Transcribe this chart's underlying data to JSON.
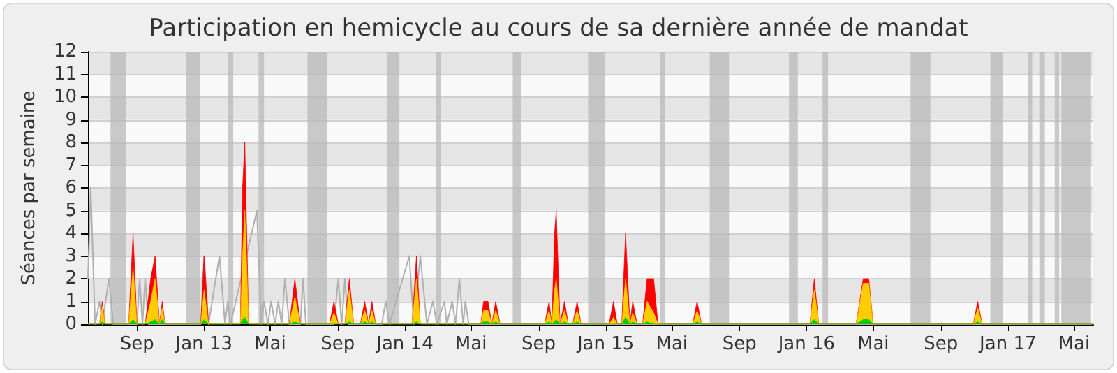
{
  "chart_data": {
    "type": "area",
    "title": "Participation en hemicycle au cours de sa dernière année de mandat",
    "ylabel": "Séances par semaine",
    "x": [
      "2012-06-04",
      "2012-06-25",
      "2012-06-30",
      "2012-07-05",
      "2012-08-17",
      "2012-08-25",
      "2012-09-01",
      "2012-09-16",
      "2012-09-26",
      "2012-10-04",
      "2012-10-12",
      "2012-10-17",
      "2012-10-22",
      "2012-12-26",
      "2013-01-01",
      "2013-01-09",
      "2013-03-08",
      "2013-03-12",
      "2013-03-16",
      "2013-03-23",
      "2013-06-05",
      "2013-06-15",
      "2013-06-25",
      "2013-08-17",
      "2013-08-25",
      "2013-09-02",
      "2013-09-14",
      "2013-09-22",
      "2013-09-30",
      "2013-10-12",
      "2013-10-20",
      "2013-10-27",
      "2013-11-02",
      "2013-11-09",
      "2014-01-14",
      "2014-01-22",
      "2014-01-29",
      "2014-05-19",
      "2014-05-24",
      "2014-06-01",
      "2014-06-08",
      "2014-06-15",
      "2014-06-23",
      "2014-09-12",
      "2014-09-20",
      "2014-09-25",
      "2014-09-30",
      "2014-10-03",
      "2014-10-10",
      "2014-10-18",
      "2014-10-25",
      "2014-11-02",
      "2014-11-10",
      "2014-11-17",
      "2015-01-07",
      "2015-01-15",
      "2015-01-22",
      "2015-01-30",
      "2015-02-06",
      "2015-02-14",
      "2015-02-19",
      "2015-02-27",
      "2015-03-09",
      "2015-03-17",
      "2015-03-29",
      "2015-04-06",
      "2015-06-08",
      "2015-06-16",
      "2015-06-24",
      "2016-01-07",
      "2016-01-15",
      "2016-01-23",
      "2016-03-31",
      "2016-04-13",
      "2016-04-23",
      "2016-05-01",
      "2016-10-30",
      "2016-11-07",
      "2016-11-15",
      "2017-06-03"
    ],
    "series": [
      {
        "color": "#ff0000",
        "values": [
          0,
          0,
          1,
          0,
          0,
          4,
          0,
          0,
          2,
          3,
          0,
          1,
          0,
          0,
          3,
          0,
          0,
          6,
          8,
          0,
          0,
          2,
          0,
          0,
          1,
          0,
          0,
          2,
          0,
          0,
          1,
          0,
          1,
          0,
          0,
          3,
          0,
          0,
          1,
          1,
          0,
          1,
          0,
          0,
          1,
          0,
          4,
          5,
          0,
          1,
          0,
          0,
          1,
          0,
          0,
          1,
          0,
          0,
          4,
          0,
          1,
          0,
          0,
          2,
          2,
          0,
          0,
          1,
          0,
          0,
          2,
          0,
          0,
          2,
          2,
          0,
          0,
          1,
          0,
          0
        ]
      },
      {
        "color": "#ffcc00",
        "values": [
          0,
          0,
          0.8,
          0,
          0,
          2.5,
          0,
          0,
          1,
          2,
          0,
          0.7,
          0,
          0,
          1.5,
          0,
          0,
          3,
          5,
          0,
          0,
          1.2,
          0,
          0,
          0.5,
          0,
          0,
          1.5,
          0,
          0,
          0.6,
          0,
          0.6,
          0,
          0,
          2,
          0,
          0,
          0.6,
          0.6,
          0,
          0.6,
          0,
          0,
          0.6,
          0,
          1.5,
          2,
          0,
          0.6,
          0,
          0,
          0.6,
          0,
          0,
          0.3,
          0,
          0,
          2,
          0,
          0.5,
          0,
          0,
          1,
          0.5,
          0,
          0,
          0.6,
          0,
          0,
          1.5,
          0,
          0,
          1.8,
          1.8,
          0,
          0,
          0.7,
          0,
          0
        ]
      },
      {
        "color": "#00cc00",
        "values": [
          0,
          0,
          0.1,
          0,
          0,
          0.2,
          0,
          0,
          0.1,
          0.2,
          0,
          0.2,
          0,
          0,
          0.2,
          0,
          0,
          0.2,
          0.3,
          0,
          0,
          0.1,
          0,
          0,
          0,
          0,
          0,
          0.1,
          0,
          0,
          0.1,
          0,
          0.1,
          0,
          0,
          0.1,
          0,
          0,
          0.1,
          0.1,
          0,
          0.1,
          0,
          0,
          0.1,
          0,
          0.1,
          0.2,
          0,
          0.1,
          0,
          0,
          0.1,
          0,
          0,
          0,
          0,
          0,
          0.3,
          0,
          0.1,
          0,
          0,
          0.1,
          0,
          0,
          0,
          0.1,
          0,
          0,
          0.2,
          0,
          0,
          0.2,
          0.2,
          0,
          0,
          0.1,
          0,
          0
        ]
      },
      {
        "type": "line",
        "color": "#b0b0b0",
        "x": [
          "2012-06-04",
          "2012-06-09",
          "2012-06-17",
          "2012-06-25",
          "2012-06-30",
          "2012-07-12",
          "2012-07-20",
          "2012-09-01",
          "2012-09-06",
          "2012-09-11",
          "2012-09-16",
          "2012-09-22",
          "2012-12-26",
          "2013-01-01",
          "2013-01-09",
          "2013-01-29",
          "2013-02-08",
          "2013-02-13",
          "2013-02-18",
          "2013-04-07",
          "2013-04-15",
          "2013-04-20",
          "2013-04-27",
          "2013-05-03",
          "2013-05-10",
          "2013-05-16",
          "2013-05-22",
          "2013-05-28",
          "2013-06-05",
          "2013-06-25",
          "2013-06-30",
          "2013-07-05",
          "2013-08-25",
          "2013-09-02",
          "2013-09-08",
          "2013-09-14",
          "2013-09-20",
          "2013-11-20",
          "2013-11-27",
          "2013-12-04",
          "2014-01-09",
          "2014-01-17",
          "2014-01-29",
          "2014-02-10",
          "2014-02-21",
          "2014-02-28",
          "2014-03-14",
          "2014-03-18",
          "2014-03-28",
          "2014-04-03",
          "2014-04-10",
          "2014-04-17",
          "2014-04-21",
          "2014-04-27",
          "2017-06-03"
        ],
        "values": [
          2,
          6,
          0,
          1,
          0,
          2,
          0,
          0,
          2,
          0,
          2,
          0,
          0,
          3,
          0,
          3,
          0,
          1,
          0,
          5,
          0,
          1,
          0,
          1,
          0,
          1,
          0,
          2,
          0,
          0,
          2,
          0,
          0,
          2,
          0,
          2,
          0,
          0,
          1,
          0,
          3,
          0,
          3,
          0,
          1,
          0,
          1,
          0,
          1,
          0,
          2,
          0,
          1,
          0,
          0
        ]
      }
    ],
    "xlim": [
      "2012-06-04",
      "2017-06-05"
    ],
    "xticks": [
      {
        "value": "2012-09-01",
        "label": "Sep"
      },
      {
        "value": "2013-01-01",
        "label": "Jan 13"
      },
      {
        "value": "2013-05-01",
        "label": "Mai"
      },
      {
        "value": "2013-09-01",
        "label": "Sep"
      },
      {
        "value": "2014-01-01",
        "label": "Jan 14"
      },
      {
        "value": "2014-05-01",
        "label": "Mai"
      },
      {
        "value": "2014-09-01",
        "label": "Sep"
      },
      {
        "value": "2015-01-01",
        "label": "Jan 15"
      },
      {
        "value": "2015-05-01",
        "label": "Mai"
      },
      {
        "value": "2015-09-01",
        "label": "Sep"
      },
      {
        "value": "2016-01-01",
        "label": "Jan 16"
      },
      {
        "value": "2016-05-01",
        "label": "Mai"
      },
      {
        "value": "2016-09-01",
        "label": "Sep"
      },
      {
        "value": "2017-01-01",
        "label": "Jan 17"
      },
      {
        "value": "2017-05-01",
        "label": "Mai"
      }
    ],
    "ylim": [
      0,
      12
    ],
    "yticks": [
      0,
      1,
      2,
      3,
      4,
      5,
      6,
      7,
      8,
      9,
      10,
      11,
      12
    ],
    "grid": "y",
    "marker": "none",
    "bands": [
      {
        "axis": "x",
        "from": "2012-07-15",
        "to": "2012-08-12",
        "color": "#b8b8b8"
      },
      {
        "axis": "x",
        "from": "2012-11-29",
        "to": "2012-12-24",
        "color": "#b8b8b8"
      },
      {
        "axis": "x",
        "from": "2013-02-13",
        "to": "2013-02-23",
        "color": "#b8b8b8"
      },
      {
        "axis": "x",
        "from": "2013-04-10",
        "to": "2013-04-20",
        "color": "#b8b8b8"
      },
      {
        "axis": "x",
        "from": "2013-07-08",
        "to": "2013-08-12",
        "color": "#b8b8b8"
      },
      {
        "axis": "x",
        "from": "2013-11-29",
        "to": "2013-12-22",
        "color": "#b8b8b8"
      },
      {
        "axis": "x",
        "from": "2014-02-26",
        "to": "2014-03-08",
        "color": "#b8b8b8"
      },
      {
        "axis": "x",
        "from": "2014-07-16",
        "to": "2014-07-31",
        "color": "#b8b8b8"
      },
      {
        "axis": "x",
        "from": "2014-11-30",
        "to": "2014-12-30",
        "color": "#b8b8b8"
      },
      {
        "axis": "x",
        "from": "2015-04-10",
        "to": "2015-04-18",
        "color": "#b8b8b8"
      },
      {
        "axis": "x",
        "from": "2015-07-09",
        "to": "2015-08-13",
        "color": "#b8b8b8"
      },
      {
        "axis": "x",
        "from": "2015-11-30",
        "to": "2015-12-16",
        "color": "#b8b8b8"
      },
      {
        "axis": "x",
        "from": "2016-01-30",
        "to": "2016-02-09",
        "color": "#b8b8b8"
      },
      {
        "axis": "x",
        "from": "2016-07-08",
        "to": "2016-08-13",
        "color": "#b8b8b8"
      },
      {
        "axis": "x",
        "from": "2016-11-30",
        "to": "2016-12-23",
        "color": "#b8b8b8"
      },
      {
        "axis": "x",
        "from": "2017-02-06",
        "to": "2017-02-14",
        "color": "#b8b8b8"
      },
      {
        "axis": "x",
        "from": "2017-02-27",
        "to": "2017-03-09",
        "color": "#b8b8b8"
      },
      {
        "axis": "x",
        "from": "2017-03-27",
        "to": "2017-04-04",
        "color": "#b8b8b8"
      },
      {
        "axis": "x",
        "from": "2017-04-08",
        "to": "2017-06-01",
        "color": "#b8b8b8"
      }
    ]
  }
}
